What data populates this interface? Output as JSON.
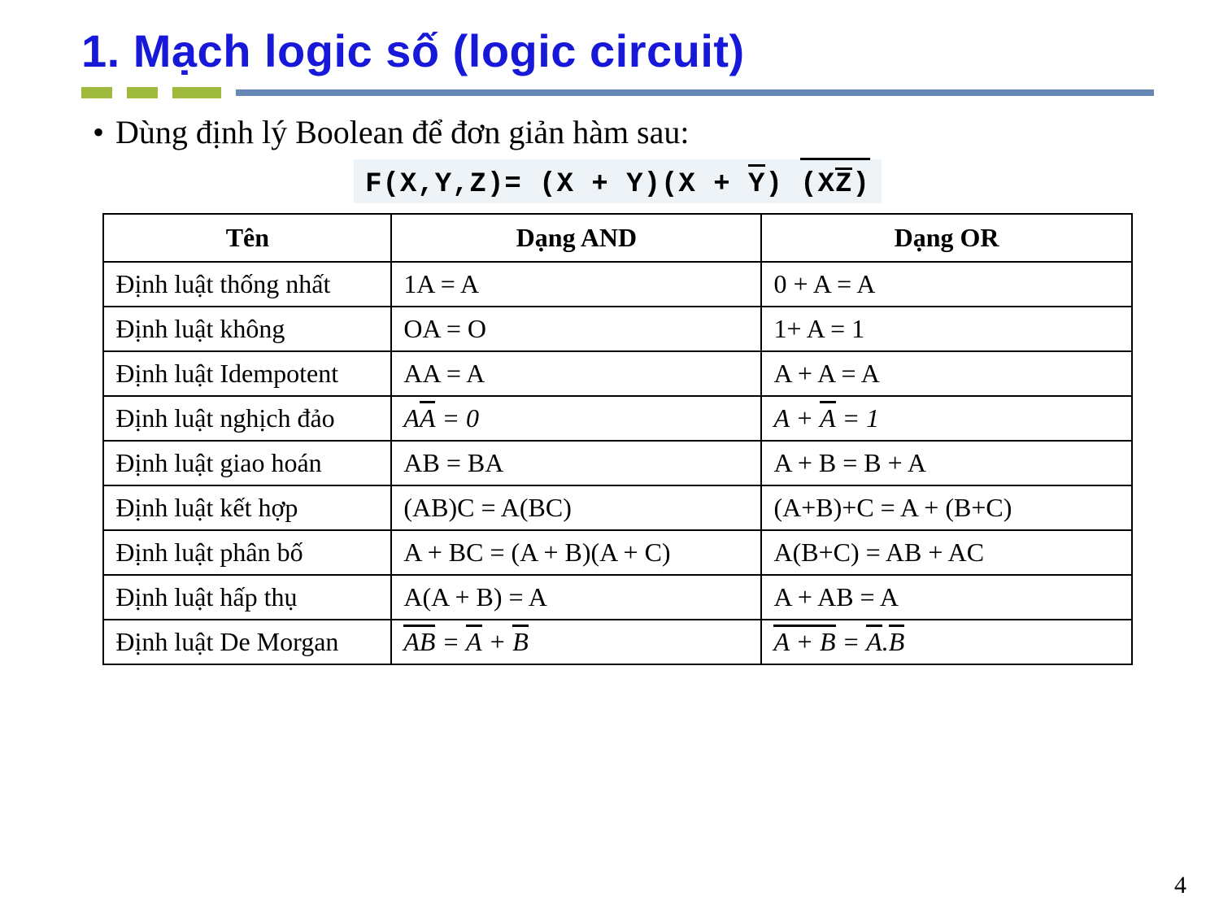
{
  "title": "1. Mạch logic số (logic circuit)",
  "bullet": "Dùng định lý Boolean để đơn giản hàm sau:",
  "formula": {
    "lhs": "F(X,Y,Z)= ",
    "p1": "(X + Y)",
    "p2_open": "(X + ",
    "p2_ybar": "Y",
    "p2_close": ")",
    "p3_open": "(",
    "p3_x": "X",
    "p3_zbar": "Z",
    "p3_close": ")"
  },
  "columns": [
    "Tên",
    "Dạng AND",
    "Dạng OR"
  ],
  "rows": [
    {
      "name": "Định luật thống nhất",
      "and_plain": "1A = A",
      "or_plain": "0 + A = A"
    },
    {
      "name": "Định luật không",
      "and_plain": "OA = O",
      "or_plain": "1+ A = 1"
    },
    {
      "name": "Định luật Idempotent",
      "and_plain": "AA = A",
      "or_plain": "A + A = A"
    },
    {
      "name": "Định luật nghịch đảo",
      "and_math": {
        "pre": "A",
        "bar": "A",
        "post": " = 0"
      },
      "or_math": {
        "pre": "A + ",
        "bar": "A",
        "post": " = 1"
      }
    },
    {
      "name": "Định luật giao hoán",
      "and_plain": "AB = BA",
      "or_plain": "A + B = B + A"
    },
    {
      "name": "Định luật kết hợp",
      "and_plain": "(AB)C = A(BC)",
      "or_plain": "(A+B)+C = A + (B+C)"
    },
    {
      "name": "Định luật phân bố",
      "and_plain": "A + BC = (A + B)(A + C)",
      "or_plain": "A(B+C) = AB + AC"
    },
    {
      "name": "Định luật hấp thụ",
      "and_plain": "A(A + B) = A",
      "or_plain": "A + AB = A"
    },
    {
      "name": "Định luật De Morgan",
      "and_math2": {
        "lbar": "AB",
        "mid": " = ",
        "r1bar": "A",
        "plus": " + ",
        "r2bar": "B"
      },
      "or_math2": {
        "lbar": "A + B",
        "mid": " = ",
        "r1bar": "A",
        "dot": ".",
        "r2bar": "B"
      }
    }
  ],
  "page_num": "4",
  "style": {
    "title_color": "#1818d8",
    "accent_green": "#9fba3c",
    "accent_blue_bar": "#6688b5",
    "formula_bg": "#eef3f7",
    "border_color": "#000000",
    "body_fontsize": 32,
    "title_fontsize": 56
  }
}
